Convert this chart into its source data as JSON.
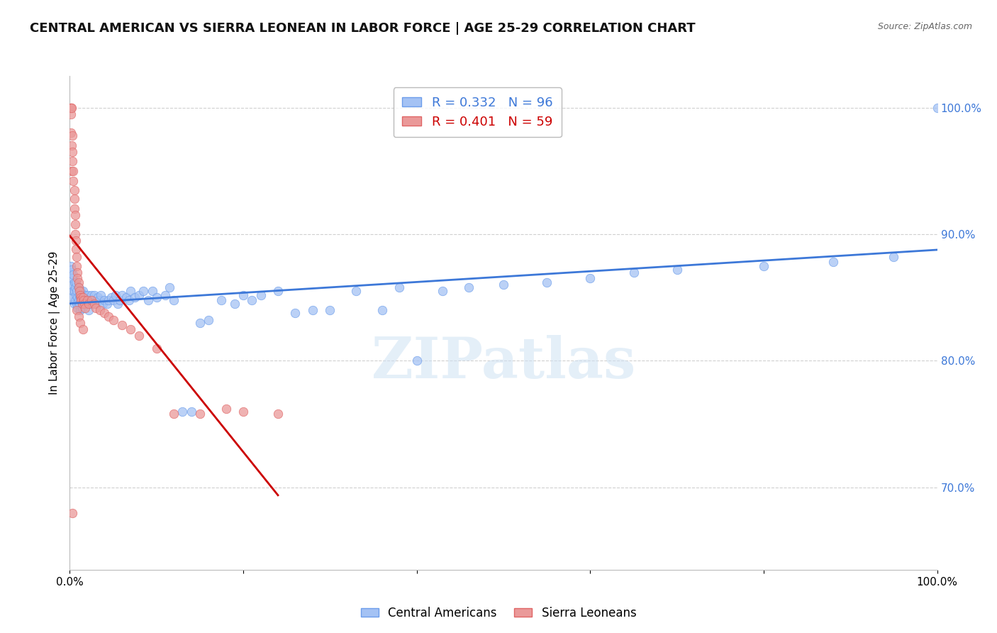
{
  "title": "CENTRAL AMERICAN VS SIERRA LEONEAN IN LABOR FORCE | AGE 25-29 CORRELATION CHART",
  "source": "Source: ZipAtlas.com",
  "ylabel": "In Labor Force | Age 25-29",
  "right_ytick_labels": [
    "70.0%",
    "80.0%",
    "90.0%",
    "100.0%"
  ],
  "right_ytick_values": [
    0.7,
    0.8,
    0.9,
    1.0
  ],
  "legend_blue_r": "R = 0.332",
  "legend_blue_n": "N = 96",
  "legend_pink_r": "R = 0.401",
  "legend_pink_n": "N = 59",
  "blue_color": "#a4c2f4",
  "blue_edge": "#6d9eeb",
  "pink_color": "#ea9999",
  "pink_edge": "#e06666",
  "trend_blue": "#3d78d8",
  "trend_pink": "#cc0000",
  "watermark": "ZIPatlas",
  "blue_scatter_x": [
    0.001,
    0.001,
    0.002,
    0.002,
    0.003,
    0.003,
    0.004,
    0.004,
    0.005,
    0.005,
    0.005,
    0.006,
    0.006,
    0.007,
    0.007,
    0.008,
    0.008,
    0.009,
    0.009,
    0.01,
    0.01,
    0.011,
    0.011,
    0.012,
    0.012,
    0.013,
    0.013,
    0.014,
    0.015,
    0.015,
    0.016,
    0.017,
    0.018,
    0.019,
    0.02,
    0.021,
    0.022,
    0.023,
    0.024,
    0.025,
    0.027,
    0.028,
    0.03,
    0.032,
    0.034,
    0.036,
    0.038,
    0.04,
    0.043,
    0.045,
    0.048,
    0.05,
    0.053,
    0.055,
    0.058,
    0.06,
    0.065,
    0.068,
    0.07,
    0.075,
    0.08,
    0.085,
    0.09,
    0.095,
    0.1,
    0.11,
    0.115,
    0.12,
    0.13,
    0.14,
    0.15,
    0.16,
    0.175,
    0.19,
    0.2,
    0.21,
    0.22,
    0.24,
    0.26,
    0.28,
    0.3,
    0.33,
    0.36,
    0.38,
    0.4,
    0.43,
    0.46,
    0.5,
    0.55,
    0.6,
    0.65,
    0.7,
    0.8,
    0.88,
    0.95,
    1.0
  ],
  "blue_scatter_y": [
    0.87,
    0.875,
    0.86,
    0.872,
    0.85,
    0.865,
    0.855,
    0.868,
    0.845,
    0.855,
    0.862,
    0.848,
    0.858,
    0.852,
    0.862,
    0.845,
    0.855,
    0.842,
    0.85,
    0.848,
    0.858,
    0.845,
    0.852,
    0.84,
    0.85,
    0.848,
    0.855,
    0.842,
    0.848,
    0.855,
    0.85,
    0.845,
    0.852,
    0.848,
    0.845,
    0.852,
    0.84,
    0.848,
    0.845,
    0.852,
    0.848,
    0.852,
    0.845,
    0.85,
    0.848,
    0.852,
    0.845,
    0.848,
    0.845,
    0.848,
    0.85,
    0.848,
    0.852,
    0.845,
    0.848,
    0.852,
    0.85,
    0.848,
    0.855,
    0.85,
    0.852,
    0.855,
    0.848,
    0.855,
    0.85,
    0.852,
    0.858,
    0.848,
    0.76,
    0.76,
    0.83,
    0.832,
    0.848,
    0.845,
    0.852,
    0.848,
    0.852,
    0.855,
    0.838,
    0.84,
    0.84,
    0.855,
    0.84,
    0.858,
    0.8,
    0.855,
    0.858,
    0.86,
    0.862,
    0.865,
    0.87,
    0.872,
    0.875,
    0.878,
    0.882,
    1.0
  ],
  "pink_scatter_x": [
    0.001,
    0.001,
    0.001,
    0.001,
    0.001,
    0.002,
    0.002,
    0.002,
    0.003,
    0.003,
    0.003,
    0.004,
    0.004,
    0.005,
    0.005,
    0.005,
    0.006,
    0.006,
    0.006,
    0.007,
    0.007,
    0.008,
    0.008,
    0.009,
    0.009,
    0.01,
    0.01,
    0.011,
    0.012,
    0.013,
    0.013,
    0.014,
    0.015,
    0.016,
    0.017,
    0.018,
    0.02,
    0.022,
    0.025,
    0.028,
    0.03,
    0.035,
    0.04,
    0.045,
    0.05,
    0.06,
    0.07,
    0.08,
    0.1,
    0.12,
    0.15,
    0.18,
    0.2,
    0.24,
    0.008,
    0.01,
    0.012,
    0.015,
    0.003
  ],
  "pink_scatter_y": [
    1.0,
    1.0,
    1.0,
    0.995,
    0.98,
    1.0,
    0.97,
    0.95,
    0.978,
    0.965,
    0.958,
    0.95,
    0.942,
    0.935,
    0.928,
    0.92,
    0.915,
    0.908,
    0.9,
    0.895,
    0.888,
    0.882,
    0.875,
    0.87,
    0.865,
    0.862,
    0.858,
    0.855,
    0.852,
    0.85,
    0.848,
    0.845,
    0.85,
    0.848,
    0.845,
    0.842,
    0.848,
    0.845,
    0.848,
    0.845,
    0.842,
    0.84,
    0.838,
    0.835,
    0.832,
    0.828,
    0.825,
    0.82,
    0.81,
    0.758,
    0.758,
    0.762,
    0.76,
    0.758,
    0.84,
    0.835,
    0.83,
    0.825,
    0.68
  ],
  "xlim": [
    0.0,
    1.0
  ],
  "ylim": [
    0.635,
    1.025
  ],
  "grid_color": "#d0d0d0",
  "background_color": "#ffffff",
  "right_axis_color": "#3d78d8",
  "title_fontsize": 13,
  "axis_label_fontsize": 11
}
